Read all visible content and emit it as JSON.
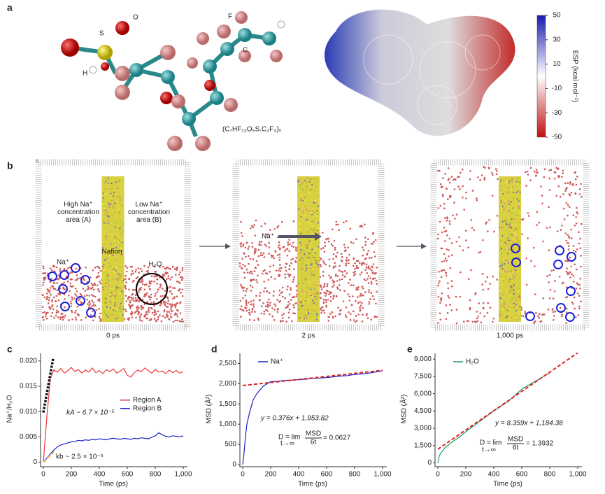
{
  "panel_labels": [
    "a",
    "b",
    "c",
    "d",
    "e"
  ],
  "molecule": {
    "atom_labels": [
      "O",
      "S",
      "H",
      "F",
      "C"
    ],
    "formula": "(C₇HF₁₃O₅S.C₂F₄)ₓ"
  },
  "esp_colorbar": {
    "label": "ESP (kcal mol⁻¹)",
    "lim": [
      -50,
      50
    ],
    "ticks": [
      50,
      30,
      10,
      -10,
      -30,
      -50
    ],
    "colors": [
      "#1a1ab0",
      "#ffffff",
      "#c01010"
    ]
  },
  "simulation": {
    "labels": [
      "High Na⁺ concentration area (A)",
      "Low Na⁺ concentration area (B)",
      "Nafion",
      "Na⁺",
      "H₂O",
      "Na⁺"
    ],
    "times": [
      "0 ps",
      "2 ps",
      "1,000 ps"
    ]
  },
  "chart_data": [
    {
      "type": "line",
      "xlabel": "Time (ps)",
      "ylabel": "Na⁺/H₂O",
      "xlim": [
        0,
        1000
      ],
      "ylim": [
        -0.0005,
        0.0215
      ],
      "xticks": [
        0,
        200,
        400,
        600,
        800,
        {
          "value": 1000,
          "label": "1,000"
        }
      ],
      "yticks": [
        0,
        0.005,
        {
          "value": 0.01,
          "label": "0.010"
        },
        0.015,
        {
          "value": 0.02,
          "label": "0.020"
        }
      ],
      "legend": "center right",
      "x": [
        0,
        25,
        50,
        75,
        100,
        125,
        150,
        175,
        200,
        225,
        250,
        275,
        300,
        325,
        350,
        375,
        400,
        425,
        450,
        475,
        500,
        525,
        550,
        575,
        600,
        625,
        650,
        675,
        700,
        725,
        750,
        775,
        800,
        825,
        850,
        875,
        900,
        925,
        950,
        975,
        1000
      ],
      "series": [
        {
          "name": "Region A",
          "color": "#e8393f",
          "values": [
            0,
            0.009,
            0.0165,
            0.0182,
            0.0178,
            0.0185,
            0.0176,
            0.0181,
            0.0187,
            0.0179,
            0.0183,
            0.0176,
            0.0182,
            0.0178,
            0.0186,
            0.0177,
            0.0181,
            0.0175,
            0.0183,
            0.0179,
            0.0184,
            0.0176,
            0.018,
            0.0185,
            0.0172,
            0.0168,
            0.0177,
            0.0182,
            0.0179,
            0.0186,
            0.0181,
            0.0176,
            0.0183,
            0.0178,
            0.018,
            0.0175,
            0.0182,
            0.0177,
            0.0181,
            0.0176,
            0.0179
          ]
        },
        {
          "name": "Region B",
          "color": "#1c22c8",
          "values": [
            0,
            0.0008,
            0.0016,
            0.0024,
            0.003,
            0.0034,
            0.0036,
            0.0038,
            0.004,
            0.0041,
            0.0043,
            0.0042,
            0.0044,
            0.0043,
            0.0045,
            0.0044,
            0.0046,
            0.0045,
            0.0044,
            0.0046,
            0.0047,
            0.0046,
            0.0045,
            0.0047,
            0.0046,
            0.0045,
            0.0047,
            0.0046,
            0.0048,
            0.0047,
            0.0046,
            0.0049,
            0.0052,
            0.0058,
            0.0054,
            0.0051,
            0.005,
            0.0052,
            0.0051,
            0.005,
            0.0052
          ]
        }
      ],
      "fit_lines": [
        {
          "color": "#111111",
          "x": [
            0,
            70
          ],
          "values": [
            0.0098,
            0.0205
          ]
        },
        {
          "color": "#f0a040",
          "x": [
            0,
            80
          ],
          "values": [
            0,
            0.0022
          ]
        }
      ],
      "annotations": [
        "kA ~ 6.7 × 10⁻⁵",
        "kb ~ 2.5 × 10⁻⁵"
      ]
    },
    {
      "type": "line",
      "xlabel": "Time (ps)",
      "ylabel": "MSD (Å²)",
      "xlim": [
        0,
        1000
      ],
      "ylim": [
        0,
        2750
      ],
      "xticks": [
        0,
        200,
        400,
        600,
        800,
        {
          "value": 1000,
          "label": "1,000"
        }
      ],
      "yticks": [
        0,
        500,
        {
          "value": 1000,
          "label": "1,000"
        },
        {
          "value": 1500,
          "label": "1,500"
        },
        {
          "value": 2000,
          "label": "2,000"
        },
        {
          "value": 2500,
          "label": "2,500"
        }
      ],
      "legend": "upper left",
      "x": [
        0,
        10,
        20,
        30,
        50,
        75,
        100,
        125,
        150,
        175,
        200,
        250,
        300,
        350,
        400,
        450,
        500,
        550,
        600,
        650,
        700,
        750,
        800,
        850,
        900,
        950,
        1000
      ],
      "series": [
        {
          "name": "Na⁺",
          "color": "#1c22c8",
          "values": [
            0,
            300,
            700,
            1000,
            1300,
            1600,
            1750,
            1850,
            1950,
            2000,
            2050,
            2060,
            2080,
            2090,
            2100,
            2110,
            2130,
            2140,
            2150,
            2170,
            2190,
            2200,
            2230,
            2240,
            2260,
            2290,
            2320
          ]
        }
      ],
      "fit_lines": [
        {
          "color": "#e02020",
          "x": [
            0,
            1000
          ],
          "values": [
            1953.82,
            2329.82
          ]
        }
      ],
      "annotations": [
        "y = 0.376x + 1,953.82",
        "D = lim",
        "t→∞",
        "MSD",
        "6t",
        "= 0.0627"
      ]
    },
    {
      "type": "line",
      "xlabel": "Time (ps)",
      "ylabel": "MSD (Å²)",
      "xlim": [
        0,
        1000
      ],
      "ylim": [
        -150,
        9500
      ],
      "xticks": [
        0,
        200,
        400,
        600,
        800,
        {
          "value": 1000,
          "label": "1,000"
        }
      ],
      "yticks": [
        0,
        {
          "value": 1500,
          "label": "1,500"
        },
        {
          "value": 3000,
          "label": "3,000"
        },
        {
          "value": 4500,
          "label": "4,500"
        },
        {
          "value": 6000,
          "label": "6,000"
        },
        {
          "value": 7500,
          "label": "7,500"
        },
        {
          "value": 9000,
          "label": "9,000"
        }
      ],
      "legend": "upper left",
      "x": [
        0,
        10,
        25,
        50,
        100,
        150,
        200,
        300,
        400,
        500,
        600,
        700,
        800
      ],
      "series": [
        {
          "name": "H₂O",
          "color": "#1a9a6a",
          "values": [
            0,
            600,
            900,
            1300,
            1800,
            2200,
            2700,
            3600,
            4500,
            5300,
            6400,
            7100,
            7800
          ]
        }
      ],
      "fit_lines": [
        {
          "color": "#e02020",
          "x": [
            0,
            1000
          ],
          "values": [
            1184.38,
            9543.38
          ]
        }
      ],
      "annotations": [
        "y = 8.359x + 1,184.38",
        "D = lim",
        "t→∞",
        "MSD",
        "6t",
        "= 1.3932"
      ]
    }
  ]
}
